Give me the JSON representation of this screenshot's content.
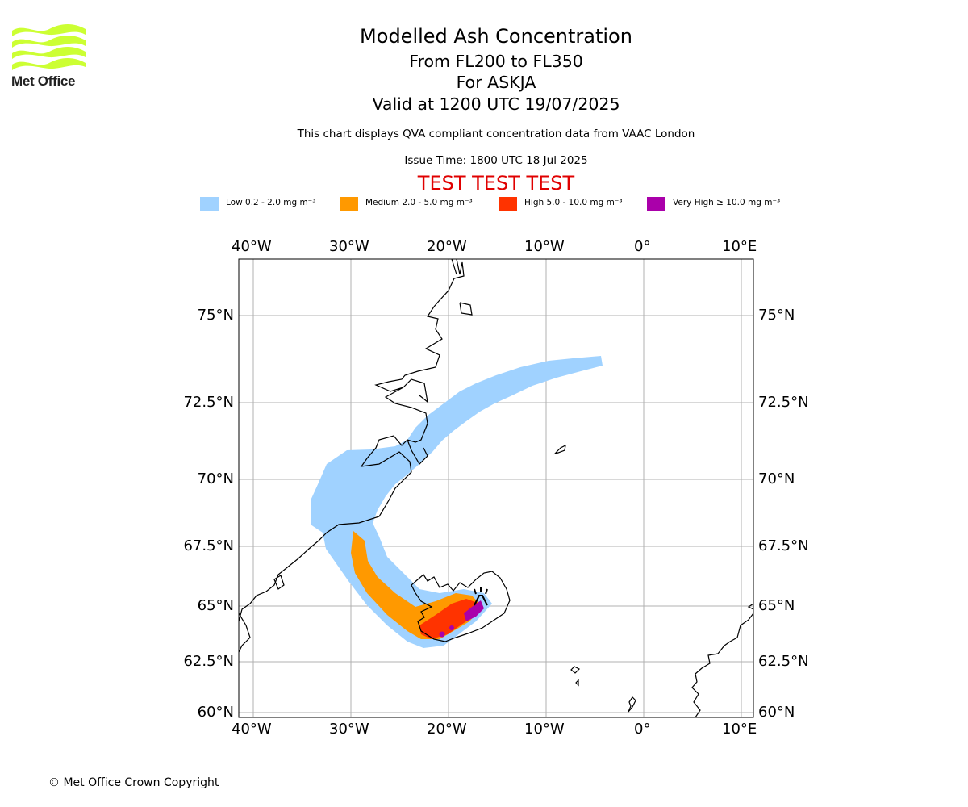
{
  "logo": {
    "text": "Met Office",
    "color": "#ccff33"
  },
  "header": {
    "title": "Modelled Ash Concentration",
    "levels": "From FL200 to FL350",
    "volcano": "For ASKJA",
    "valid_time": "Valid at 1200 UTC 19/07/2025",
    "description": "This chart displays QVA compliant concentration data from VAAC London",
    "issue_time": "Issue Time: 1800 UTC 18 Jul 2025",
    "test_banner": "TEST TEST TEST",
    "test_banner_color": "#e00000"
  },
  "legend": [
    {
      "label": "Low 0.2 - 2.0 mg m⁻³",
      "color": "#a0d2ff"
    },
    {
      "label": "Medium 2.0 - 5.0 mg m⁻³",
      "color": "#ff9900"
    },
    {
      "label": "High 5.0 - 10.0 mg m⁻³",
      "color": "#ff3300"
    },
    {
      "label": "Very High  ≥  10.0 mg m⁻³",
      "color": "#aa00aa"
    }
  ],
  "map": {
    "lon_ticks": [
      "40°W",
      "30°W",
      "20°W",
      "10°W",
      "0°",
      "10°E"
    ],
    "lat_ticks": [
      "75°N",
      "72.5°N",
      "70°N",
      "67.5°N",
      "65°N",
      "62.5°N",
      "60°N"
    ],
    "gridlines": true,
    "volcano_marker": "volcano-icon"
  },
  "footer": {
    "copyright": "© Met Office Crown Copyright"
  }
}
